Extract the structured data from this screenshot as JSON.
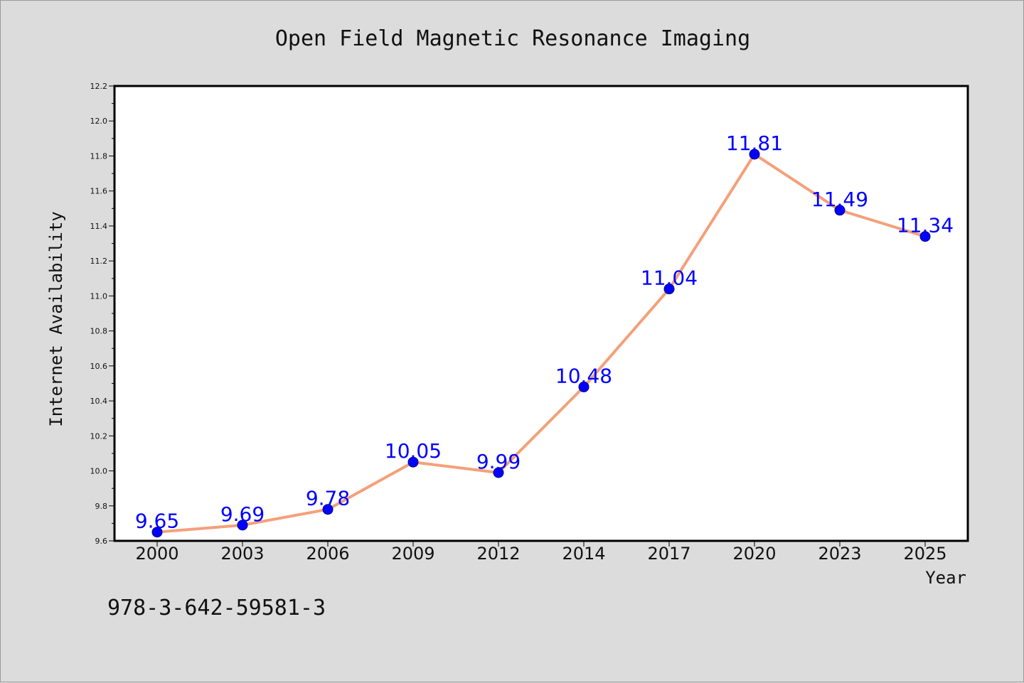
{
  "chart_data": {
    "type": "line",
    "title": "Open Field Magnetic Resonance Imaging",
    "xlabel": "Year",
    "ylabel": "Internet Availability",
    "categories": [
      "2000",
      "2003",
      "2006",
      "2009",
      "2012",
      "2014",
      "2017",
      "2020",
      "2023",
      "2025"
    ],
    "values": [
      9.65,
      9.69,
      9.78,
      10.05,
      9.99,
      10.48,
      11.04,
      11.81,
      11.49,
      11.34
    ],
    "data_labels": [
      "9.65",
      "9.69",
      "9.78",
      "10.05",
      "9.99",
      "10.48",
      "11.04",
      "11.81",
      "11.49",
      "11.34"
    ],
    "ylim": [
      9.6,
      12.2
    ],
    "yticks": [
      "9.6",
      "9.8",
      "10.0",
      "10.2",
      "10.4",
      "10.6",
      "10.8",
      "11.0",
      "11.2",
      "11.4",
      "11.6",
      "11.8",
      "12.0",
      "12.2"
    ],
    "grid": false,
    "legend": "none",
    "colors": {
      "line": "#f4a07a",
      "marker": "#0000ff",
      "marker_edge": "#000080",
      "data_label": "#0000ff",
      "plot_background": "#ffffff",
      "figure_background": "#dcdcdc"
    }
  },
  "footer": {
    "isbn": "978-3-642-59581-3"
  }
}
